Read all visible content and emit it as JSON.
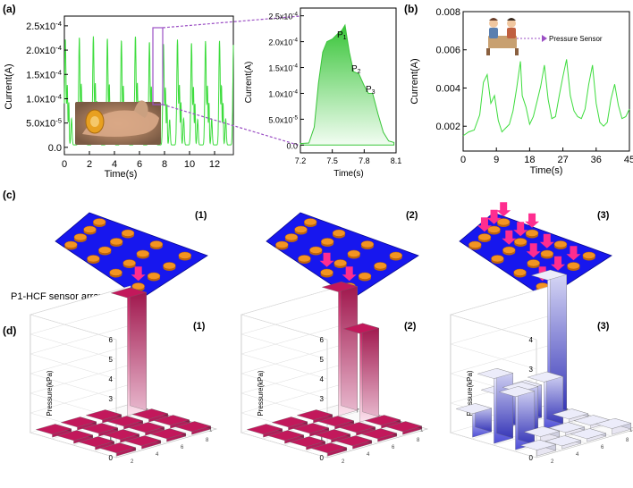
{
  "panel_labels": {
    "a": "(a)",
    "b": "(b)",
    "c": "(c)",
    "d": "(d)"
  },
  "sub_labels": {
    "one": "(1)",
    "two": "(2)",
    "three": "(3)"
  },
  "array_label": "P1-HCF sensor array",
  "inset_label": "Pressure Sensor",
  "peak_labels": [
    "P",
    "P",
    "P"
  ],
  "peak_subs": [
    "1",
    "2",
    "3"
  ],
  "colors": {
    "line": "#3ddc3d",
    "fill_top": "#3fd13f",
    "fill_bottom": "#eafcea",
    "zoom_box": "#9b4fc4",
    "pad_blue": "#1a1aee",
    "sensor_orange": "#f08c1a",
    "arrow_pink": "#ff2d8f",
    "bar_red": "#c2185b",
    "bar_blue": "#6b6bd8"
  },
  "chart_data": [
    {
      "type": "line",
      "id": "a-main",
      "title": "",
      "xlabel": "Time(s)",
      "ylabel": "Current(A)",
      "xlim": [
        0,
        13.5
      ],
      "ylim": [
        -1.5e-05,
        0.00027
      ],
      "xticks": [
        "0",
        "2",
        "4",
        "6",
        "8",
        "10",
        "12"
      ],
      "yticks": [
        "0.0",
        "5.0x10",
        "1.0x10",
        "1.5x10",
        "2.0x10",
        "2.5x10"
      ],
      "ytick_exp": [
        "",
        "-5",
        "-4",
        "-4",
        "-4",
        "-4"
      ],
      "period_s": 1.12,
      "peak_values": [
        0.000238,
        0.000242,
        0.000245,
        0.00024,
        0.000235,
        0.000245,
        0.000232,
        0.000228,
        0.000238,
        0.00023,
        0.000235
      ],
      "baseline_min": 5e-06,
      "zoom_window": [
        7.2,
        8.1
      ],
      "inset_image": "hand-wrist-sensor photo"
    },
    {
      "type": "area",
      "id": "a-zoom",
      "xlabel": "Time(s)",
      "ylabel": "Current(A)",
      "xlim": [
        7.2,
        8.1
      ],
      "ylim": [
        -1.5e-05,
        0.000265
      ],
      "xticks": [
        "7.2",
        "7.5",
        "7.8",
        "8.1"
      ],
      "yticks": [
        "0.0",
        "5.0x10",
        "1.0x10",
        "1.5x10",
        "2.0x10",
        "2.5x10"
      ],
      "ytick_exp": [
        "",
        "-5",
        "-4",
        "-4",
        "-4",
        "-4"
      ],
      "x": [
        7.2,
        7.28,
        7.33,
        7.37,
        7.41,
        7.45,
        7.5,
        7.55,
        7.59,
        7.62,
        7.66,
        7.7,
        7.75,
        7.8,
        7.84,
        7.88,
        7.93,
        7.98,
        8.03,
        8.08
      ],
      "y": [
        3e-06,
        4e-06,
        3.5e-05,
        0.00012,
        0.00018,
        0.0002,
        0.000205,
        0.000215,
        0.000222,
        0.000232,
        0.00018,
        0.000142,
        0.000138,
        0.000115,
        0.0001,
        0.0001,
        6e-05,
        2.5e-05,
        8e-06,
        5e-06
      ],
      "annotations": [
        "P1",
        "P2",
        "P3"
      ]
    },
    {
      "type": "line",
      "id": "b",
      "xlabel": "Time(s)",
      "ylabel": "Current(A)",
      "xlim": [
        0,
        45
      ],
      "ylim": [
        0.0007,
        0.008
      ],
      "xticks": [
        "0",
        "9",
        "18",
        "27",
        "36",
        "45"
      ],
      "yticks": [
        "0.002",
        "0.004",
        "0.006",
        "0.008"
      ],
      "x": [
        0,
        1.5,
        3,
        4.5,
        5.5,
        6.5,
        7.5,
        8.5,
        9.5,
        10.5,
        11.5,
        12.5,
        13.5,
        14.5,
        15.5,
        16,
        17,
        18,
        19,
        20,
        21,
        22,
        23,
        24,
        25,
        26,
        27,
        28,
        29,
        30,
        31,
        32,
        33,
        34,
        35,
        36,
        37,
        38,
        39,
        40,
        41,
        42,
        43,
        44,
        45
      ],
      "y": [
        0.0015,
        0.0017,
        0.0018,
        0.0026,
        0.0043,
        0.0047,
        0.0032,
        0.0036,
        0.0023,
        0.0017,
        0.0019,
        0.0021,
        0.0028,
        0.004,
        0.0054,
        0.0036,
        0.003,
        0.0021,
        0.0025,
        0.0033,
        0.0041,
        0.0052,
        0.0034,
        0.0024,
        0.0025,
        0.0036,
        0.0046,
        0.0055,
        0.0036,
        0.0028,
        0.0025,
        0.0024,
        0.0029,
        0.0042,
        0.0052,
        0.0032,
        0.0022,
        0.002,
        0.0022,
        0.0034,
        0.0042,
        0.0031,
        0.0024,
        0.0025,
        0.0029
      ]
    },
    {
      "type": "bar3d",
      "id": "d1",
      "ylabel": "Pressure(kPa)",
      "zlim": [
        0,
        6
      ],
      "zticks": [
        "0",
        "1",
        "2",
        "3",
        "4",
        "5",
        "6"
      ],
      "grid": [
        [
          0.15,
          0.15,
          0.15,
          0.15
        ],
        [
          0.15,
          0.15,
          0.15,
          0.15
        ],
        [
          0.15,
          0.15,
          0.15,
          0.15
        ],
        [
          0.15,
          0.15,
          0.15,
          6.0
        ]
      ]
    },
    {
      "type": "bar3d",
      "id": "d2",
      "ylabel": "Pressure(kPa)",
      "zlim": [
        0,
        6
      ],
      "zticks": [
        "0",
        "1",
        "2",
        "3",
        "4",
        "5",
        "6"
      ],
      "grid": [
        [
          0.15,
          0.15,
          0.15,
          0.15
        ],
        [
          0.15,
          0.15,
          0.15,
          0.15
        ],
        [
          0.15,
          0.15,
          0.15,
          4.5
        ],
        [
          0.15,
          0.15,
          0.15,
          6.3
        ]
      ]
    },
    {
      "type": "bar3d",
      "id": "d3",
      "ylabel": "Pressure(kPa)",
      "zlim": [
        0,
        4
      ],
      "zticks": [
        "0",
        "1",
        "2",
        "3",
        "4"
      ],
      "grid": [
        [
          0.2,
          0.1,
          0.1,
          0.2
        ],
        [
          1.8,
          0.2,
          0.1,
          0.1
        ],
        [
          2.2,
          1.5,
          1.6,
          0.1
        ],
        [
          0.8,
          1.2,
          1.1,
          4.6
        ]
      ]
    }
  ]
}
